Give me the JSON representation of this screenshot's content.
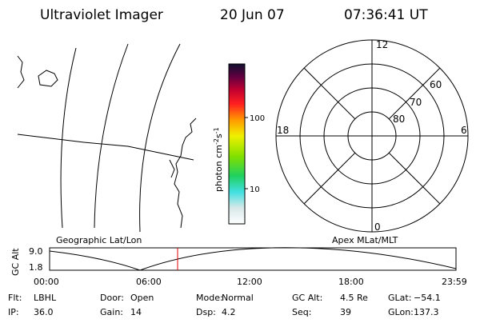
{
  "header": {
    "title": "Ultraviolet Imager",
    "date": "20 Jun 07",
    "time": "07:36:41 UT"
  },
  "colorbar": {
    "label": {
      "base": "photon cm",
      "exp1": "-2",
      "unit": "s",
      "exp2": "-1"
    },
    "ticks": [
      "100",
      "10"
    ]
  },
  "polar": {
    "mlt_labels": {
      "top": "12",
      "bottom": "0",
      "left": "18",
      "right": "6"
    },
    "lat_labels": [
      "60",
      "70",
      "80"
    ]
  },
  "altitude_plot": {
    "left_title": "Geographic Lat/Lon",
    "right_title": "Apex MLat/MLT",
    "y_label": "GC Alt",
    "y_ticks": [
      "9.0",
      "1.8"
    ],
    "x_ticks": [
      "00:00",
      "06:00",
      "12:00",
      "18:00",
      "23:59"
    ]
  },
  "info": [
    [
      {
        "label": "Flt:",
        "value": "LBHL"
      },
      {
        "label": "IP:",
        "value": "36.0"
      }
    ],
    [
      {
        "label": "Door:",
        "value": "Open"
      },
      {
        "label": "Gain:",
        "value": "14"
      }
    ],
    [
      {
        "label": "Mode:",
        "value": "Normal"
      },
      {
        "label": "Dsp:",
        "value": "4.2"
      }
    ],
    [
      {
        "label": "GC Alt:",
        "value": "4.5 Re"
      },
      {
        "label": "Seq:",
        "value": "39"
      }
    ],
    [
      {
        "label": "GLat:",
        "value": "−54.1"
      },
      {
        "label": "GLon:",
        "value": "137.3"
      }
    ]
  ]
}
